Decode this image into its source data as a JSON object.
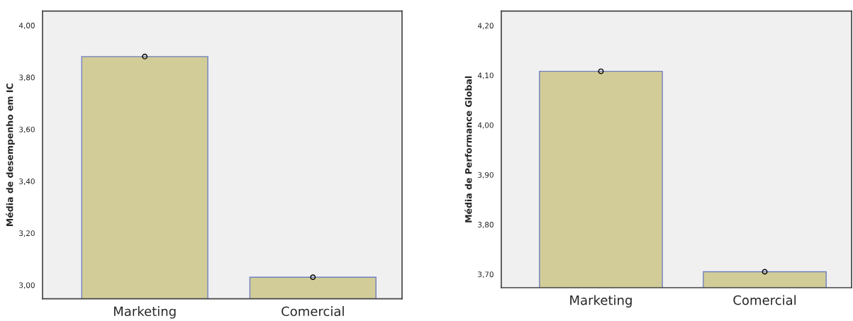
{
  "chart_data": [
    {
      "type": "bar",
      "categories": [
        "Marketing",
        "Comercial"
      ],
      "ylabel": "Média de desempenho em IC",
      "ylim": [
        2.947,
        4.055
      ],
      "yticks": [
        {
          "value": 3.0,
          "label": "3,00"
        },
        {
          "value": 3.2,
          "label": "3,20"
        },
        {
          "value": 3.4,
          "label": "3,40"
        },
        {
          "value": 3.6,
          "label": "3,60"
        },
        {
          "value": 3.8,
          "label": "3,80"
        },
        {
          "value": 4.0,
          "label": "4,00"
        }
      ],
      "grid": false,
      "legend": false,
      "series": [
        {
          "color": "#d2cd98",
          "values": [
            3.88,
            3.03
          ]
        },
        {
          "type": "scatter",
          "color": "#000000",
          "marker": "circle",
          "x": [
            "Marketing",
            "Comercial"
          ],
          "values": [
            3.88,
            3.03
          ]
        }
      ]
    },
    {
      "type": "bar",
      "categories": [
        "Marketing",
        "Comercial"
      ],
      "ylabel": "Média de Performance Global",
      "ylim": [
        3.673,
        4.229
      ],
      "yticks": [
        {
          "value": 3.7,
          "label": "3,70"
        },
        {
          "value": 3.8,
          "label": "3,80"
        },
        {
          "value": 3.9,
          "label": "3,90"
        },
        {
          "value": 4.0,
          "label": "4,00"
        },
        {
          "value": 4.1,
          "label": "4,10"
        },
        {
          "value": 4.2,
          "label": "4,20"
        }
      ],
      "grid": false,
      "legend": false,
      "series": [
        {
          "color": "#d2cd98",
          "values": [
            4.108,
            3.705
          ]
        },
        {
          "type": "scatter",
          "color": "#000000",
          "marker": "circle",
          "x": [
            "Marketing",
            "Comercial"
          ],
          "values": [
            4.108,
            3.705
          ]
        }
      ]
    }
  ]
}
